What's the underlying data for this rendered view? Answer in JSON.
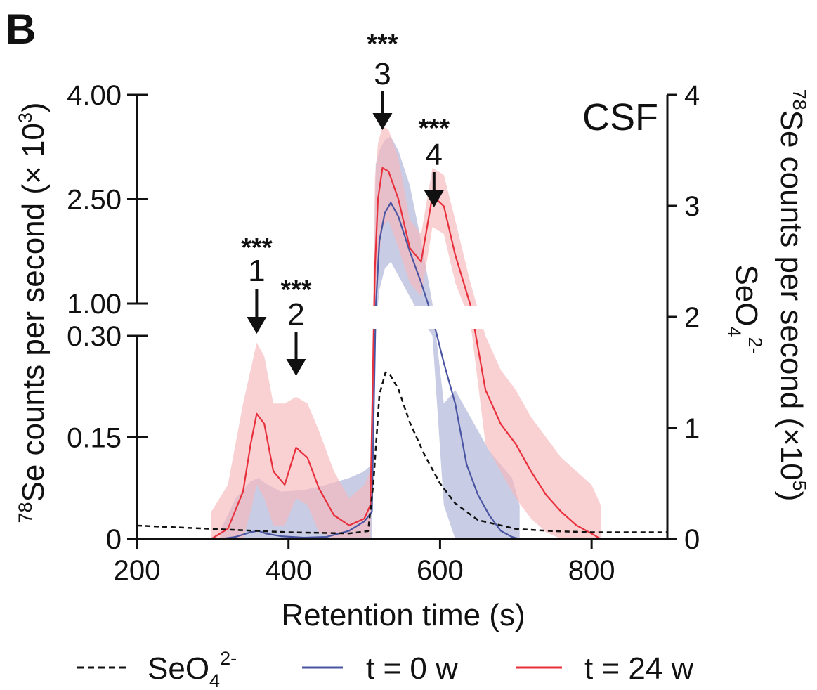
{
  "panel_label": "B",
  "chart_data": {
    "type": "line",
    "inset_label": "CSF",
    "xlabel": "Retention time (s)",
    "xlim": [
      200,
      900
    ],
    "x_ticks": [
      "200",
      "400",
      "600",
      "800"
    ],
    "y_left": {
      "label": "Se counts per second (× 10",
      "label_sup_iso": "78",
      "label_sup_exp": "3",
      "label_end": ")",
      "axis_break": true,
      "lower_range": [
        0,
        0.3
      ],
      "upper_range": [
        1.0,
        4.0
      ],
      "ticks": [
        "0",
        "0.15",
        "0.30",
        "1.00",
        "2.50",
        "4.00"
      ]
    },
    "y_right": {
      "label": "Se counts per second (×10",
      "label_sup_iso": "78",
      "label_sup_exp": "5",
      "label_end": ")",
      "label_line2": "SeO",
      "label_line2_sub": "4",
      "label_line2_sup": "2-",
      "range": [
        0,
        4
      ],
      "ticks": [
        "0",
        "1",
        "2",
        "3",
        "4"
      ]
    },
    "peaks": [
      {
        "number": "1",
        "stars": "***",
        "x": 358
      },
      {
        "number": "2",
        "stars": "***",
        "x": 410
      },
      {
        "number": "3",
        "stars": "***",
        "x": 524
      },
      {
        "number": "4",
        "stars": "***",
        "x": 592
      }
    ],
    "legend": [
      {
        "label": "SeO",
        "sub": "4",
        "sup": "2-",
        "style": "dashed",
        "color": "#111111"
      },
      {
        "label": "t = 0 w",
        "style": "solid",
        "color": "#4a55a2"
      },
      {
        "label": "t = 24 w",
        "style": "solid",
        "color": "#e8303c"
      }
    ],
    "series": [
      {
        "name": "t = 0 w",
        "color": "#4a55a2",
        "band_color": "#aab0d6",
        "axis": "left",
        "x": [
          310,
          330,
          350,
          360,
          370,
          390,
          420,
          450,
          480,
          500,
          510,
          515,
          520,
          527,
          535,
          545,
          560,
          575,
          590,
          605,
          620,
          635,
          650,
          665,
          680,
          695,
          705
        ],
        "y": [
          0,
          0.003,
          0.01,
          0.012,
          0.008,
          0.004,
          0.002,
          0.003,
          0.012,
          0.026,
          0.04,
          0.9,
          1.9,
          2.3,
          2.45,
          2.25,
          1.75,
          1.3,
          0.7,
          0.26,
          0.2,
          0.11,
          0.065,
          0.035,
          0.012,
          0.003,
          0
        ],
        "upper": [
          0.012,
          0.06,
          0.085,
          0.09,
          0.082,
          0.07,
          0.072,
          0.08,
          0.09,
          0.1,
          0.11,
          3.0,
          3.2,
          3.35,
          3.4,
          3.2,
          2.7,
          1.9,
          1.0,
          0.2,
          0.22,
          0.19,
          0.16,
          0.13,
          0.11,
          0.09,
          0.05
        ],
        "lower": [
          0,
          0,
          0,
          0,
          0,
          0,
          0,
          0,
          0,
          0,
          0,
          0.5,
          1.2,
          1.5,
          1.6,
          1.4,
          1.1,
          0.7,
          0.3,
          0.05,
          0,
          0,
          0,
          0,
          0,
          0,
          0
        ]
      },
      {
        "name": "t = 24 w",
        "color": "#e8303c",
        "band_color": "#f6b8bc",
        "axis": "left",
        "x": [
          298,
          320,
          340,
          350,
          358,
          368,
          380,
          395,
          410,
          425,
          440,
          460,
          480,
          500,
          508,
          514,
          518,
          524,
          532,
          545,
          560,
          575,
          590,
          605,
          620,
          640,
          660,
          680,
          700,
          720,
          740,
          760,
          780,
          800,
          812
        ],
        "y": [
          0,
          0.015,
          0.07,
          0.14,
          0.185,
          0.17,
          0.1,
          0.08,
          0.135,
          0.12,
          0.075,
          0.035,
          0.02,
          0.03,
          0.05,
          1.5,
          2.5,
          2.95,
          2.9,
          2.5,
          1.8,
          1.6,
          2.55,
          2.4,
          1.7,
          0.97,
          0.22,
          0.17,
          0.14,
          0.1,
          0.065,
          0.04,
          0.02,
          0.008,
          0
        ],
        "upper": [
          0.04,
          0.08,
          0.2,
          0.25,
          0.29,
          0.27,
          0.2,
          0.2,
          0.21,
          0.2,
          0.16,
          0.1,
          0.06,
          0.08,
          0.1,
          2.8,
          3.3,
          3.55,
          3.5,
          3.1,
          2.2,
          2.0,
          2.95,
          2.85,
          2.2,
          1.3,
          0.3,
          0.25,
          0.22,
          0.18,
          0.15,
          0.12,
          0.1,
          0.08,
          0.05
        ],
        "lower": [
          0,
          0,
          0,
          0.04,
          0.08,
          0.06,
          0.02,
          0.02,
          0.06,
          0.05,
          0.01,
          0,
          0,
          0,
          0,
          0.6,
          1.5,
          2.1,
          2.2,
          1.8,
          1.3,
          1.1,
          2.1,
          2.0,
          1.3,
          0.6,
          0.14,
          0.1,
          0.06,
          0.03,
          0.01,
          0,
          0,
          0,
          0
        ]
      },
      {
        "name": "SeO4 2-",
        "color": "#111111",
        "axis": "right",
        "dashed": true,
        "x": [
          200,
          300,
          400,
          480,
          505,
          512,
          520,
          528,
          534,
          545,
          560,
          580,
          600,
          620,
          650,
          700,
          750,
          800,
          900
        ],
        "y": [
          0.12,
          0.09,
          0.06,
          0.05,
          0.07,
          0.5,
          1.3,
          1.5,
          1.48,
          1.35,
          1.05,
          0.75,
          0.5,
          0.32,
          0.17,
          0.09,
          0.07,
          0.06,
          0.06
        ]
      }
    ]
  }
}
